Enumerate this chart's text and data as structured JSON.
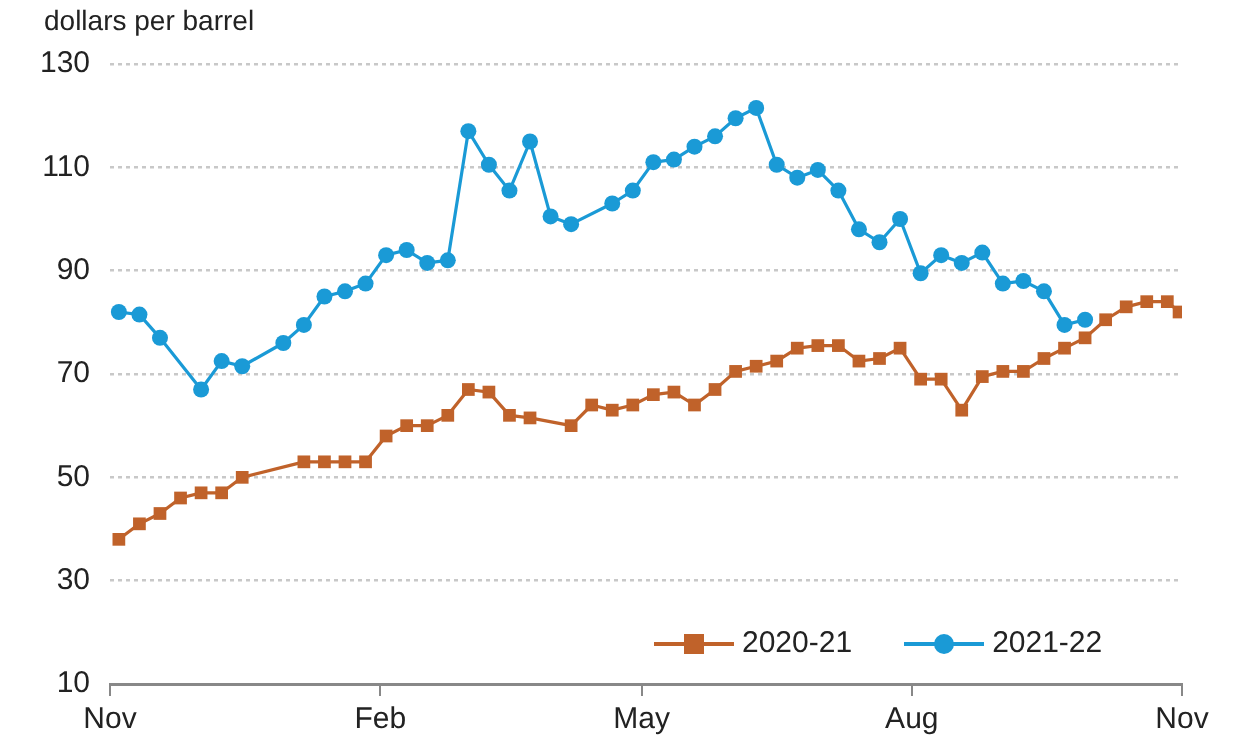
{
  "chart_data": {
    "type": "line",
    "ylabel": "dollars per barrel",
    "xlim": [
      "2020-11-01",
      "2021-11-01"
    ],
    "xticks": [
      {
        "value": "2020-11-01",
        "label": "Nov"
      },
      {
        "value": "2021-02-01",
        "label": "Feb"
      },
      {
        "value": "2021-05-01",
        "label": "May"
      },
      {
        "value": "2021-08-01",
        "label": "Aug"
      },
      {
        "value": "2021-11-01",
        "label": "Nov"
      }
    ],
    "ylim": [
      10,
      130
    ],
    "yticks": [
      10,
      30,
      50,
      70,
      90,
      110,
      130
    ],
    "grid": "y",
    "legend": "bottom right",
    "line_style": "solid",
    "series": [
      {
        "name": "2020-21",
        "color": "#c0622a",
        "marker": "square",
        "x": [
          "2020-11-04",
          "2020-11-11",
          "2020-11-18",
          "2020-11-25",
          "2020-12-02",
          "2020-12-09",
          "2020-12-16",
          "2021-01-06",
          "2021-01-13",
          "2021-01-20",
          "2021-01-27",
          "2021-02-03",
          "2021-02-10",
          "2021-02-17",
          "2021-02-24",
          "2021-03-03",
          "2021-03-10",
          "2021-03-17",
          "2021-03-24",
          "2021-04-07",
          "2021-04-14",
          "2021-04-21",
          "2021-04-28",
          "2021-05-05",
          "2021-05-12",
          "2021-05-19",
          "2021-05-26",
          "2021-06-02",
          "2021-06-09",
          "2021-06-16",
          "2021-06-23",
          "2021-06-30",
          "2021-07-07",
          "2021-07-14",
          "2021-07-21",
          "2021-07-28",
          "2021-08-04",
          "2021-08-11",
          "2021-08-18",
          "2021-08-25",
          "2021-09-01",
          "2021-09-08",
          "2021-09-15",
          "2021-09-22",
          "2021-09-29",
          "2021-10-06",
          "2021-10-13",
          "2021-10-20",
          "2021-10-27",
          "2021-10-31"
        ],
        "values": [
          38,
          41,
          43,
          46,
          47,
          47,
          50,
          53,
          53,
          53,
          53,
          58,
          60,
          60,
          62,
          67,
          66.5,
          62,
          61.5,
          60,
          64,
          63,
          64,
          66,
          66.5,
          64,
          67,
          70.5,
          71.5,
          72.5,
          75,
          75.5,
          75.5,
          72.5,
          73,
          75,
          69,
          69,
          63,
          69.5,
          70.5,
          70.5,
          73,
          75,
          77,
          80.5,
          83,
          84,
          84,
          82
        ]
      },
      {
        "name": "2021-22",
        "color": "#1a9ad6",
        "marker": "circle",
        "x": [
          "2020-11-04",
          "2020-11-11",
          "2020-11-18",
          "2020-12-02",
          "2020-12-09",
          "2020-12-16",
          "2020-12-30",
          "2021-01-06",
          "2021-01-13",
          "2021-01-20",
          "2021-01-27",
          "2021-02-03",
          "2021-02-10",
          "2021-02-17",
          "2021-02-24",
          "2021-03-03",
          "2021-03-10",
          "2021-03-17",
          "2021-03-24",
          "2021-03-31",
          "2021-04-07",
          "2021-04-21",
          "2021-04-28",
          "2021-05-05",
          "2021-05-12",
          "2021-05-19",
          "2021-05-26",
          "2021-06-02",
          "2021-06-09",
          "2021-06-16",
          "2021-06-23",
          "2021-06-30",
          "2021-07-07",
          "2021-07-14",
          "2021-07-21",
          "2021-07-28",
          "2021-08-04",
          "2021-08-11",
          "2021-08-18",
          "2021-08-25",
          "2021-09-01",
          "2021-09-08",
          "2021-09-15",
          "2021-09-22",
          "2021-09-29"
        ],
        "values": [
          82,
          81.5,
          77,
          67,
          72.5,
          71.5,
          76,
          79.5,
          85,
          86,
          87.5,
          93,
          94,
          91.5,
          92,
          117,
          110.5,
          105.5,
          115,
          100.5,
          99,
          103,
          105.5,
          111,
          111.5,
          114,
          116,
          119.5,
          121.5,
          110.5,
          108,
          109.5,
          105.5,
          98,
          95.5,
          100,
          89.5,
          93,
          91.5,
          93.5,
          87.5,
          88,
          86,
          79.5,
          80.5
        ]
      }
    ]
  }
}
